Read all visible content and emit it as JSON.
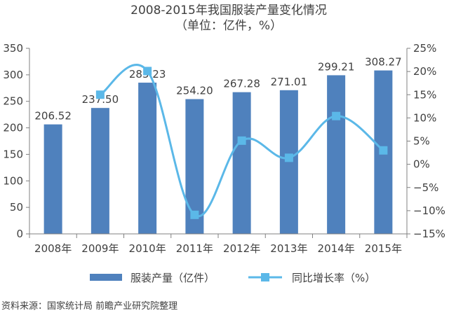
{
  "chart_data": {
    "type": "bar",
    "title": "2008-2015年我国服装产量变化情况",
    "subtitle": "（单位：亿件，%）",
    "categories": [
      "2008年",
      "2009年",
      "2010年",
      "2011年",
      "2012年",
      "2013年",
      "2014年",
      "2015年"
    ],
    "series": [
      {
        "name": "服装产量（亿件）",
        "type": "bar",
        "axis": "left",
        "color": "#4F81BD",
        "values": [
          206.52,
          237.5,
          285.23,
          254.2,
          267.28,
          271.01,
          299.21,
          308.27
        ],
        "labels": [
          "206.52",
          "237.50",
          "285.23",
          "254.20",
          "267.28",
          "271.01",
          "299.21",
          "308.27"
        ]
      },
      {
        "name": "同比增长率（%）",
        "type": "line",
        "axis": "right",
        "color": "#5BB8E8",
        "values": [
          null,
          15.0,
          20.1,
          -10.9,
          5.1,
          1.4,
          10.4,
          3.0
        ]
      }
    ],
    "y_left": {
      "min": 0,
      "max": 350,
      "ticks": [
        0,
        50,
        100,
        150,
        200,
        250,
        300,
        350
      ],
      "tick_labels": [
        "0",
        "50",
        "100",
        "150",
        "200",
        "250",
        "300",
        "350"
      ]
    },
    "y_right": {
      "min": -15,
      "max": 25,
      "ticks": [
        -15,
        -10,
        -5,
        0,
        5,
        10,
        15,
        20,
        25
      ],
      "tick_labels": [
        "−15%",
        "−10%",
        "−5%",
        "0%",
        "5%",
        "10%",
        "15%",
        "20%",
        "25%"
      ]
    },
    "grid": false,
    "legend_position": "bottom",
    "source": "资料来源：国家统计局 前瞻产业研究院整理"
  }
}
